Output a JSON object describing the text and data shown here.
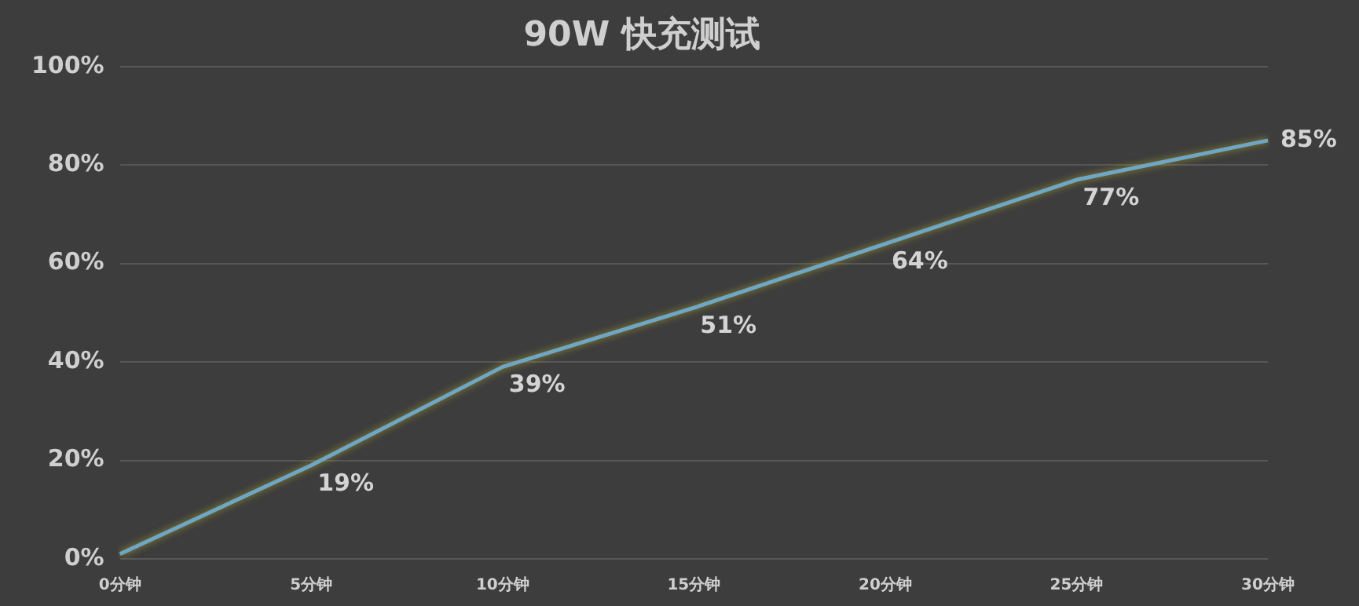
{
  "chart_data": {
    "type": "line",
    "title": "90W 快充测试",
    "categories": [
      "0分钟",
      "5分钟",
      "10分钟",
      "15分钟",
      "20分钟",
      "25分钟",
      "30分钟"
    ],
    "series": [
      {
        "color": "#6fa6c4",
        "values": [
          1,
          19,
          39,
          51,
          64,
          77,
          85
        ],
        "value_labels": [
          null,
          "19%",
          "39%",
          "51%",
          "64%",
          "77%",
          "85%"
        ]
      }
    ],
    "ylim": [
      0,
      100
    ],
    "yticks": [
      {
        "value": 0,
        "label": "0%"
      },
      {
        "value": 20,
        "label": "20%"
      },
      {
        "value": 40,
        "label": "40%"
      },
      {
        "value": 60,
        "label": "60%"
      },
      {
        "value": 80,
        "label": "80%"
      },
      {
        "value": 100,
        "label": "100%"
      }
    ],
    "grid": "y",
    "legend": false,
    "marker": "none",
    "line_style": "solid"
  }
}
